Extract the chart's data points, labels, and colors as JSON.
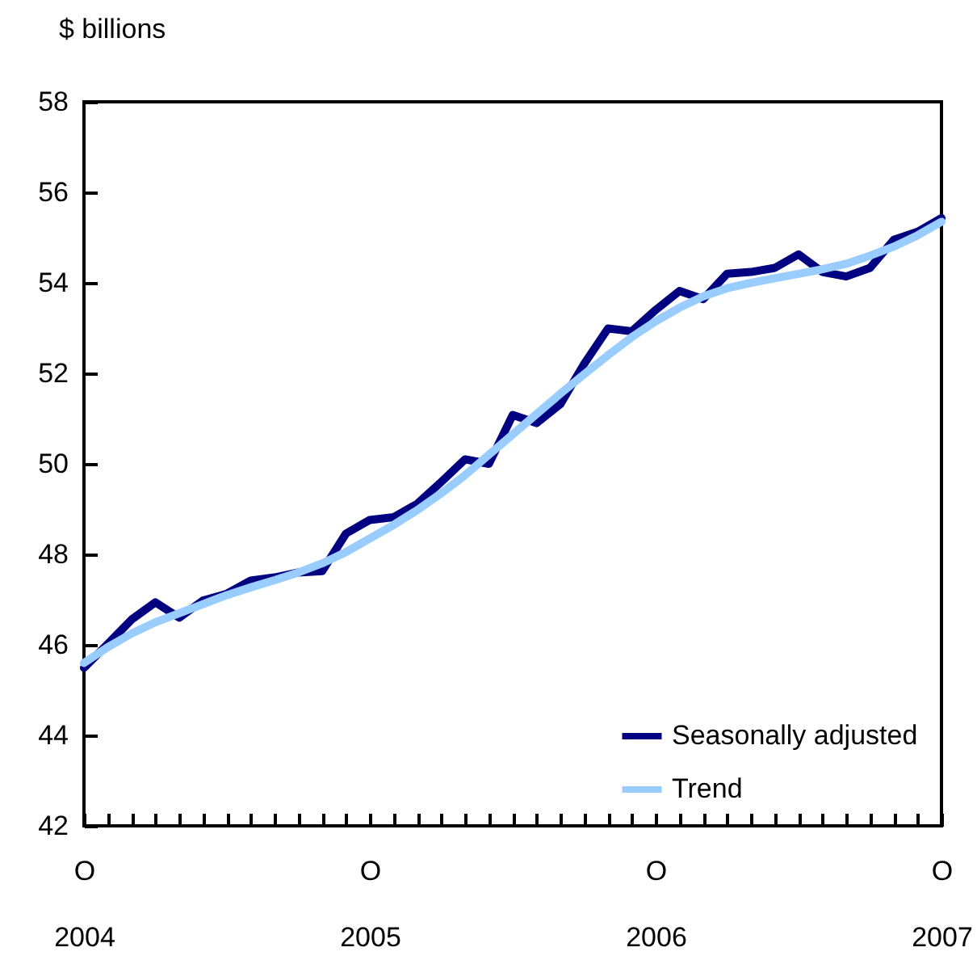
{
  "chart_data": {
    "type": "line",
    "ylabel": "$ billions",
    "categories": [
      "O\n2004",
      null,
      null,
      null,
      null,
      null,
      null,
      null,
      null,
      null,
      null,
      null,
      "O\n2005",
      null,
      null,
      null,
      null,
      null,
      null,
      null,
      null,
      null,
      null,
      null,
      "O\n2006",
      null,
      null,
      null,
      null,
      null,
      null,
      null,
      null,
      null,
      null,
      null,
      "O\n2007"
    ],
    "series": [
      {
        "name": "Seasonally adjusted",
        "color": "#000080",
        "values": [
          45.49,
          46.02,
          46.56,
          46.94,
          46.6,
          46.98,
          47.13,
          47.42,
          47.49,
          47.6,
          47.63,
          48.46,
          48.76,
          48.82,
          49.12,
          49.6,
          50.1,
          50.0,
          51.08,
          50.9,
          51.32,
          52.21,
          52.99,
          52.93,
          53.4,
          53.82,
          53.64,
          54.2,
          54.24,
          54.33,
          54.63,
          54.24,
          54.14,
          54.33,
          54.95,
          55.13,
          55.43
        ]
      },
      {
        "name": "Trend",
        "color": "#99ccff",
        "values": [
          45.6,
          45.95,
          46.25,
          46.5,
          46.7,
          46.9,
          47.1,
          47.27,
          47.43,
          47.6,
          47.8,
          48.05,
          48.35,
          48.65,
          48.98,
          49.35,
          49.75,
          50.2,
          50.65,
          51.1,
          51.55,
          51.98,
          52.4,
          52.8,
          53.15,
          53.45,
          53.7,
          53.88,
          54.0,
          54.1,
          54.2,
          54.3,
          54.42,
          54.6,
          54.8,
          55.05,
          55.35
        ]
      }
    ],
    "ylim": [
      42,
      58
    ],
    "yticks": [
      42,
      44,
      46,
      48,
      50,
      52,
      54,
      56,
      58
    ],
    "grid": false,
    "legend": "bottom right",
    "marker": "none",
    "line_style": "solid"
  }
}
